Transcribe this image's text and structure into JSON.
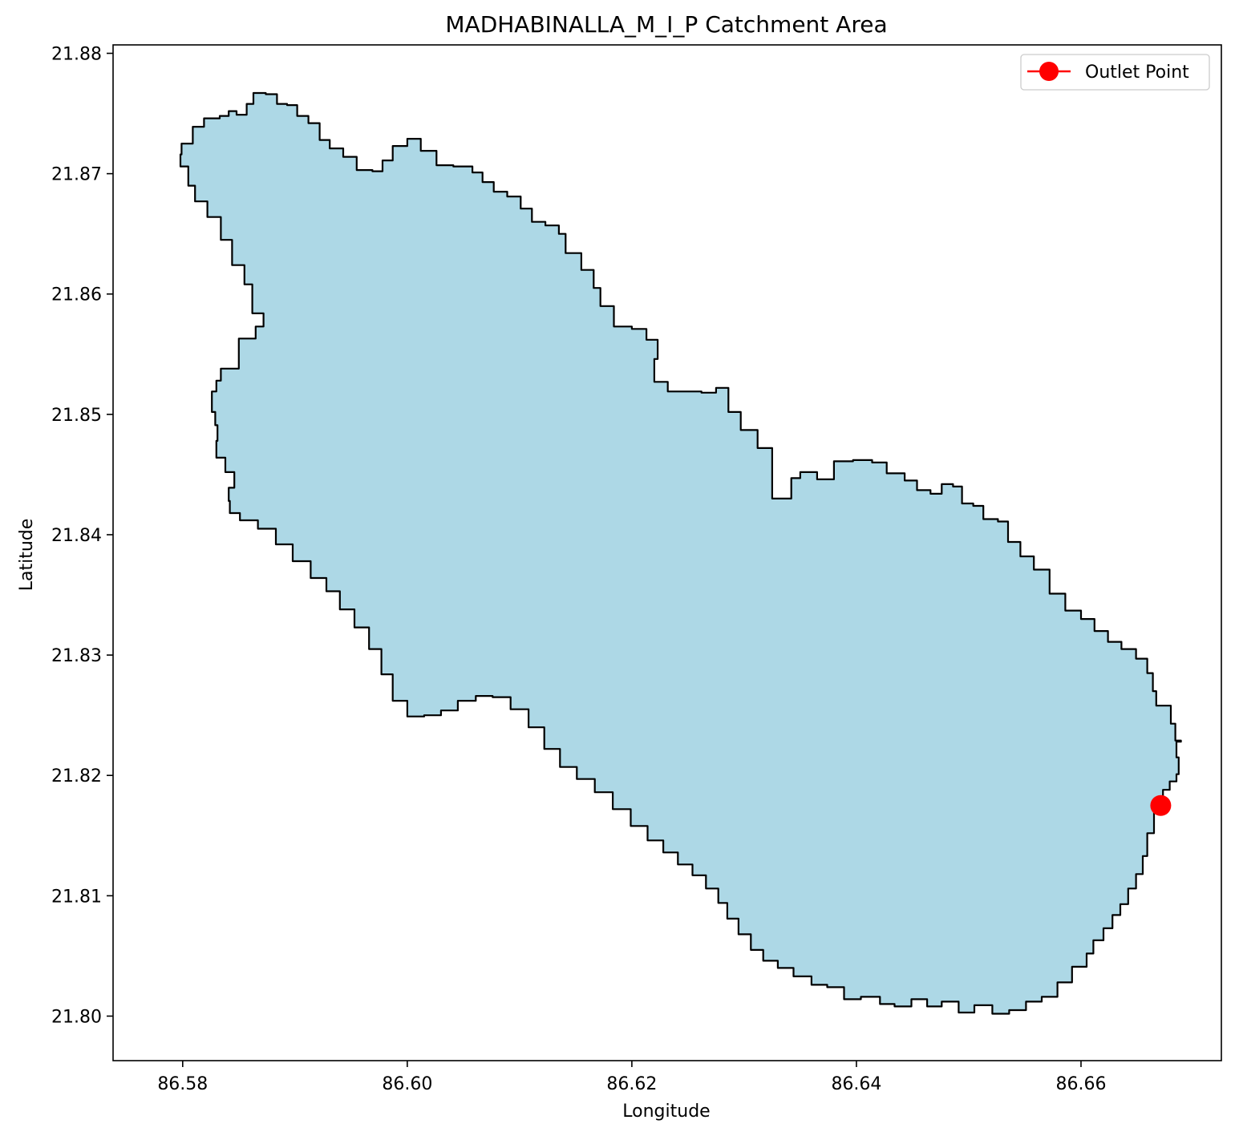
{
  "chart_data": {
    "type": "map",
    "title": "MADHABINALLA_M_I_P Catchment Area",
    "xlabel": "Longitude",
    "ylabel": "Latitude",
    "xlim": [
      86.5738,
      86.6725
    ],
    "ylim": [
      21.7963,
      21.8807
    ],
    "xticks": [
      86.58,
      86.6,
      86.62,
      86.64,
      86.66
    ],
    "xtick_labels": [
      "86.58",
      "86.60",
      "86.62",
      "86.64",
      "86.66"
    ],
    "yticks": [
      21.8,
      21.81,
      21.82,
      21.83,
      21.84,
      21.85,
      21.86,
      21.87,
      21.88
    ],
    "ytick_labels": [
      "21.80",
      "21.81",
      "21.82",
      "21.83",
      "21.84",
      "21.85",
      "21.86",
      "21.87",
      "21.88"
    ],
    "grid": false,
    "legend": {
      "placement": "top-right",
      "entries": [
        "Outlet Point"
      ]
    },
    "colors": {
      "fill": "#add8e6",
      "edge": "#000000",
      "outlet": "#ff0000"
    },
    "outlet": {
      "name": "Outlet Point",
      "lon": 86.6671,
      "lat": 21.8175
    },
    "catchment_boundary": [
      [
        86.5799,
        21.8725
      ],
      [
        86.5809,
        21.8739
      ],
      [
        86.5819,
        21.8746
      ],
      [
        86.5833,
        21.8748
      ],
      [
        86.5841,
        21.8752
      ],
      [
        86.5848,
        21.8749
      ],
      [
        86.5857,
        21.8758
      ],
      [
        86.5863,
        21.8767
      ],
      [
        86.5874,
        21.8766
      ],
      [
        86.5884,
        21.8758
      ],
      [
        86.5893,
        21.8757
      ],
      [
        86.5902,
        21.8748
      ],
      [
        86.5912,
        21.8742
      ],
      [
        86.5922,
        21.8728
      ],
      [
        86.5931,
        21.8721
      ],
      [
        86.5943,
        21.8714
      ],
      [
        86.5955,
        21.8703
      ],
      [
        86.5969,
        21.8702
      ],
      [
        86.5978,
        21.8711
      ],
      [
        86.5987,
        21.8723
      ],
      [
        86.6,
        21.8729
      ],
      [
        86.6012,
        21.8719
      ],
      [
        86.6026,
        21.8707
      ],
      [
        86.6041,
        21.8706
      ],
      [
        86.6058,
        21.8701
      ],
      [
        86.6067,
        21.8693
      ],
      [
        86.6077,
        21.8685
      ],
      [
        86.6089,
        21.8681
      ],
      [
        86.6101,
        21.8671
      ],
      [
        86.6111,
        21.866
      ],
      [
        86.6123,
        21.8657
      ],
      [
        86.6135,
        21.865
      ],
      [
        86.6141,
        21.8634
      ],
      [
        86.6155,
        21.862
      ],
      [
        86.6166,
        21.8605
      ],
      [
        86.6172,
        21.859
      ],
      [
        86.6184,
        21.8573
      ],
      [
        86.62,
        21.8571
      ],
      [
        86.6213,
        21.8562
      ],
      [
        86.6223,
        21.8546
      ],
      [
        86.622,
        21.8527
      ],
      [
        86.6232,
        21.8519
      ],
      [
        86.6245,
        21.8519
      ],
      [
        86.6262,
        21.8518
      ],
      [
        86.6275,
        21.8522
      ],
      [
        86.6286,
        21.8502
      ],
      [
        86.6297,
        21.8487
      ],
      [
        86.6312,
        21.8472
      ],
      [
        86.6325,
        21.843
      ],
      [
        86.6342,
        21.8447
      ],
      [
        86.635,
        21.8452
      ],
      [
        86.6365,
        21.8446
      ],
      [
        86.638,
        21.8461
      ],
      [
        86.6397,
        21.8462
      ],
      [
        86.6414,
        21.846
      ],
      [
        86.6427,
        21.8451
      ],
      [
        86.6443,
        21.8445
      ],
      [
        86.6454,
        21.8437
      ],
      [
        86.6466,
        21.8434
      ],
      [
        86.6476,
        21.8442
      ],
      [
        86.6486,
        21.844
      ],
      [
        86.6494,
        21.8426
      ],
      [
        86.6504,
        21.8424
      ],
      [
        86.6513,
        21.8413
      ],
      [
        86.6526,
        21.8411
      ],
      [
        86.6535,
        21.8394
      ],
      [
        86.6546,
        21.8382
      ],
      [
        86.6558,
        21.8371
      ],
      [
        86.6572,
        21.8351
      ],
      [
        86.6586,
        21.8337
      ],
      [
        86.66,
        21.833
      ],
      [
        86.6612,
        21.832
      ],
      [
        86.6624,
        21.8311
      ],
      [
        86.6636,
        21.8305
      ],
      [
        86.6649,
        21.8297
      ],
      [
        86.6659,
        21.8285
      ],
      [
        86.6664,
        21.827
      ],
      [
        86.6667,
        21.8258
      ],
      [
        86.668,
        21.8243
      ],
      [
        86.6684,
        21.8229
      ],
      [
        86.6689,
        21.8228
      ],
      [
        86.6685,
        21.8215
      ],
      [
        86.6687,
        21.8201
      ],
      [
        86.6685,
        21.8195
      ],
      [
        86.6679,
        21.8188
      ],
      [
        86.6673,
        21.8173
      ],
      [
        86.6665,
        21.8152
      ],
      [
        86.6659,
        21.8133
      ],
      [
        86.6655,
        21.8118
      ],
      [
        86.6649,
        21.8106
      ],
      [
        86.6642,
        21.8093
      ],
      [
        86.6635,
        21.8084
      ],
      [
        86.6628,
        21.8073
      ],
      [
        86.662,
        21.8063
      ],
      [
        86.6611,
        21.8052
      ],
      [
        86.6605,
        21.8041
      ],
      [
        86.6592,
        21.8028
      ],
      [
        86.6579,
        21.8016
      ],
      [
        86.6565,
        21.8012
      ],
      [
        86.6551,
        21.8005
      ],
      [
        86.6536,
        21.8002
      ],
      [
        86.6521,
        21.8009
      ],
      [
        86.6505,
        21.8003
      ],
      [
        86.6491,
        21.8012
      ],
      [
        86.6476,
        21.8008
      ],
      [
        86.6463,
        21.8014
      ],
      [
        86.6449,
        21.8008
      ],
      [
        86.6434,
        21.801
      ],
      [
        86.6421,
        21.8016
      ],
      [
        86.6404,
        21.8014
      ],
      [
        86.6389,
        21.8024
      ],
      [
        86.6374,
        21.8026
      ],
      [
        86.636,
        21.8033
      ],
      [
        86.6344,
        21.804
      ],
      [
        86.633,
        21.8046
      ],
      [
        86.6317,
        21.8055
      ],
      [
        86.6306,
        21.8068
      ],
      [
        86.6295,
        21.8081
      ],
      [
        86.6285,
        21.8094
      ],
      [
        86.6277,
        21.8106
      ],
      [
        86.6266,
        21.8117
      ],
      [
        86.6254,
        21.8126
      ],
      [
        86.6241,
        21.8136
      ],
      [
        86.6228,
        21.8146
      ],
      [
        86.6214,
        21.8158
      ],
      [
        86.6199,
        21.8172
      ],
      [
        86.6183,
        21.8186
      ],
      [
        86.6167,
        21.8197
      ],
      [
        86.6151,
        21.8207
      ],
      [
        86.6136,
        21.8222
      ],
      [
        86.6122,
        21.824
      ],
      [
        86.6108,
        21.8255
      ],
      [
        86.6092,
        21.8265
      ],
      [
        86.6076,
        21.8266
      ],
      [
        86.6061,
        21.8262
      ],
      [
        86.6045,
        21.8254
      ],
      [
        86.603,
        21.825
      ],
      [
        86.6015,
        21.8249
      ],
      [
        86.6,
        21.8262
      ],
      [
        86.5987,
        21.8284
      ],
      [
        86.5977,
        21.8305
      ],
      [
        86.5966,
        21.8323
      ],
      [
        86.5953,
        21.8338
      ],
      [
        86.594,
        21.8353
      ],
      [
        86.5928,
        21.8364
      ],
      [
        86.5914,
        21.8378
      ],
      [
        86.5898,
        21.8392
      ],
      [
        86.5883,
        21.8405
      ],
      [
        86.5867,
        21.8412
      ],
      [
        86.5851,
        21.8418
      ],
      [
        86.5842,
        21.8428
      ],
      [
        86.5841,
        21.8439
      ],
      [
        86.5846,
        21.8452
      ],
      [
        86.5838,
        21.8464
      ],
      [
        86.583,
        21.8478
      ],
      [
        86.5831,
        21.8491
      ],
      [
        86.5829,
        21.8502
      ],
      [
        86.5826,
        21.8519
      ],
      [
        86.583,
        21.8528
      ],
      [
        86.5834,
        21.8538
      ],
      [
        86.585,
        21.8563
      ],
      [
        86.5865,
        21.8573
      ],
      [
        86.5872,
        21.8584
      ],
      [
        86.5862,
        21.8608
      ],
      [
        86.5855,
        21.8624
      ],
      [
        86.5844,
        21.8645
      ],
      [
        86.5834,
        21.8664
      ],
      [
        86.5822,
        21.8677
      ],
      [
        86.5811,
        21.869
      ],
      [
        86.5805,
        21.8706
      ],
      [
        86.5798,
        21.8716
      ]
    ]
  }
}
